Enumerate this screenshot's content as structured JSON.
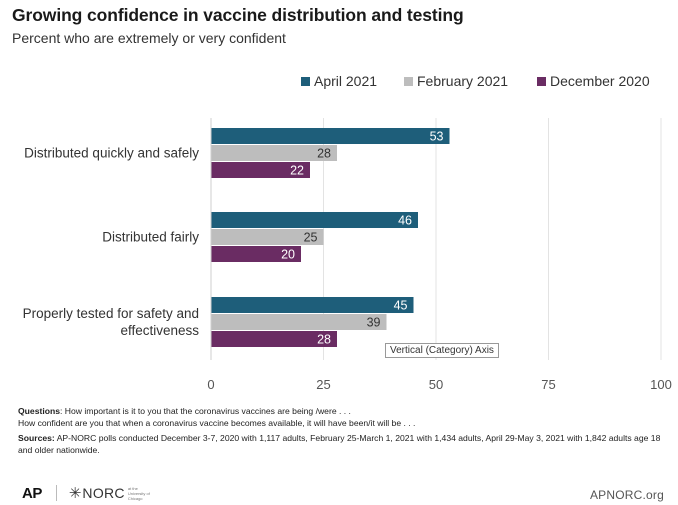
{
  "chart_data": {
    "type": "bar",
    "orientation": "horizontal",
    "title": "Growing confidence in vaccine distribution and testing",
    "subtitle": "Percent who are extremely or very confident",
    "categories": [
      [
        "Distributed quickly and safely"
      ],
      [
        "Distributed fairly"
      ],
      [
        "Properly tested for safety and",
        "effectiveness"
      ]
    ],
    "series": [
      {
        "name": "April 2021",
        "color": "#1e5e7a",
        "values": [
          53,
          46,
          45
        ]
      },
      {
        "name": "February 2021",
        "color": "#bdbdbd",
        "values": [
          28,
          25,
          39
        ]
      },
      {
        "name": "December 2020",
        "color": "#6a2c63",
        "values": [
          22,
          20,
          28
        ]
      }
    ],
    "xlim": [
      0,
      100
    ],
    "xticks": [
      0,
      25,
      50,
      75,
      100
    ],
    "grid": true,
    "legend_position": "top-right",
    "label_color_dark": "#ffffff",
    "label_color_light": "#333333"
  },
  "tooltip": "Vertical (Category) Axis",
  "notes": {
    "questions_label": "Questions",
    "questions_line1": ": How important is it to you that the coronavirus vaccines are being /were . . .",
    "questions_line2": "How confident are you that when a coronavirus vaccine becomes available, it will have been/it will be . . .",
    "sources_label": "Sources:",
    "sources_text": " AP-NORC polls conducted December 3-7, 2020 with 1,117 adults, February 25-March 1, 2021 with 1,434 adults, April 29-May 3, 2021 with 1,842 adults age 18 and older nationwide."
  },
  "footer": {
    "ap_logo": "AP",
    "norc_logo": "NORC",
    "norc_tag": "at the University of Chicago",
    "site": "APNORC.org"
  }
}
